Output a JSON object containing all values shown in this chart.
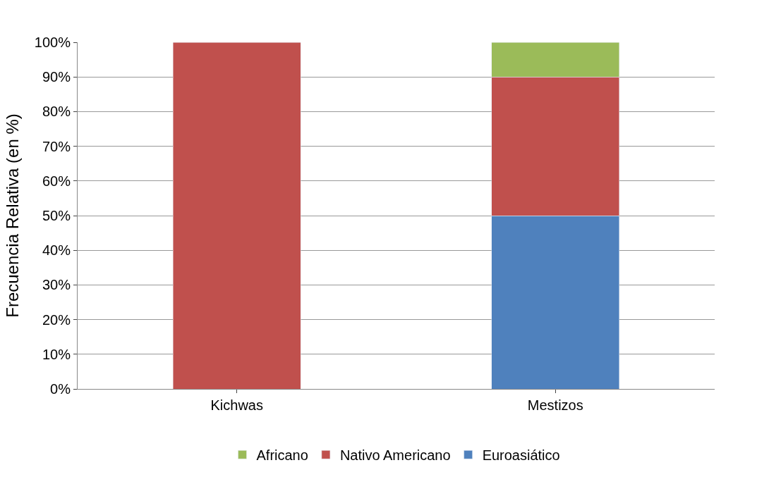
{
  "chart_data": {
    "type": "bar",
    "stacked": true,
    "ylabel": "Frecuencia Relativa (en %)",
    "categories": [
      "Kichwas",
      "Mestizos"
    ],
    "series": [
      {
        "name": "Euroasiático",
        "color": "#4f81bd",
        "values": [
          null,
          50
        ]
      },
      {
        "name": "Nativo Americano",
        "color": "#c0504d",
        "values": [
          100,
          40
        ]
      },
      {
        "name": "Africano",
        "color": "#9bbb59",
        "values": [
          null,
          10
        ]
      }
    ],
    "ylim": [
      0,
      100
    ],
    "yticks": [
      {
        "value": 0,
        "label": "0%"
      },
      {
        "value": 10,
        "label": "10%"
      },
      {
        "value": 20,
        "label": "20%"
      },
      {
        "value": 30,
        "label": "30%"
      },
      {
        "value": 40,
        "label": "40%"
      },
      {
        "value": 50,
        "label": "50%"
      },
      {
        "value": 60,
        "label": "60%"
      },
      {
        "value": 70,
        "label": "70%"
      },
      {
        "value": 80,
        "label": "80%"
      },
      {
        "value": 90,
        "label": "90%"
      },
      {
        "value": 100,
        "label": "100%"
      }
    ],
    "grid": "y",
    "legend": "bottom"
  }
}
